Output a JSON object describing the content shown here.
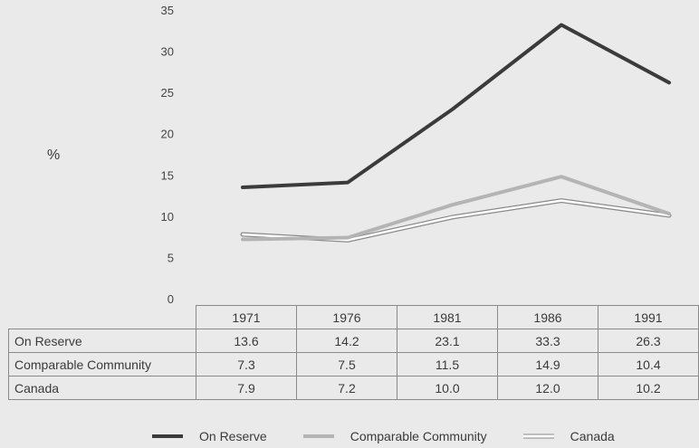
{
  "chart_data": {
    "type": "line",
    "ylabel": "%",
    "ylim": [
      0,
      35
    ],
    "yticks": [
      0,
      5,
      10,
      15,
      20,
      25,
      30,
      35
    ],
    "categories": [
      "1971",
      "1976",
      "1981",
      "1986",
      "1991"
    ],
    "series": [
      {
        "name": "On Reserve",
        "values": [
          13.6,
          14.2,
          23.1,
          33.3,
          26.3
        ],
        "color": "#3b3b3b"
      },
      {
        "name": "Comparable Community",
        "values": [
          7.3,
          7.5,
          11.5,
          14.9,
          10.4
        ],
        "color": "#b4b4b4"
      },
      {
        "name": "Canada",
        "values": [
          7.9,
          7.2,
          10.0,
          12.0,
          10.2
        ],
        "color": "#ffffff"
      }
    ],
    "legend_position": "bottom",
    "grid": false
  },
  "table": {
    "columns": [
      "1971",
      "1976",
      "1981",
      "1986",
      "1991"
    ],
    "rows": [
      {
        "label": "On Reserve",
        "values": [
          "13.6",
          "14.2",
          "23.1",
          "33.3",
          "26.3"
        ]
      },
      {
        "label": "Comparable Community",
        "values": [
          "7.3",
          "7.5",
          "11.5",
          "14.9",
          "10.4"
        ]
      },
      {
        "label": "Canada",
        "values": [
          "7.9",
          "7.2",
          "10.0",
          "12.0",
          "10.2"
        ]
      }
    ]
  }
}
